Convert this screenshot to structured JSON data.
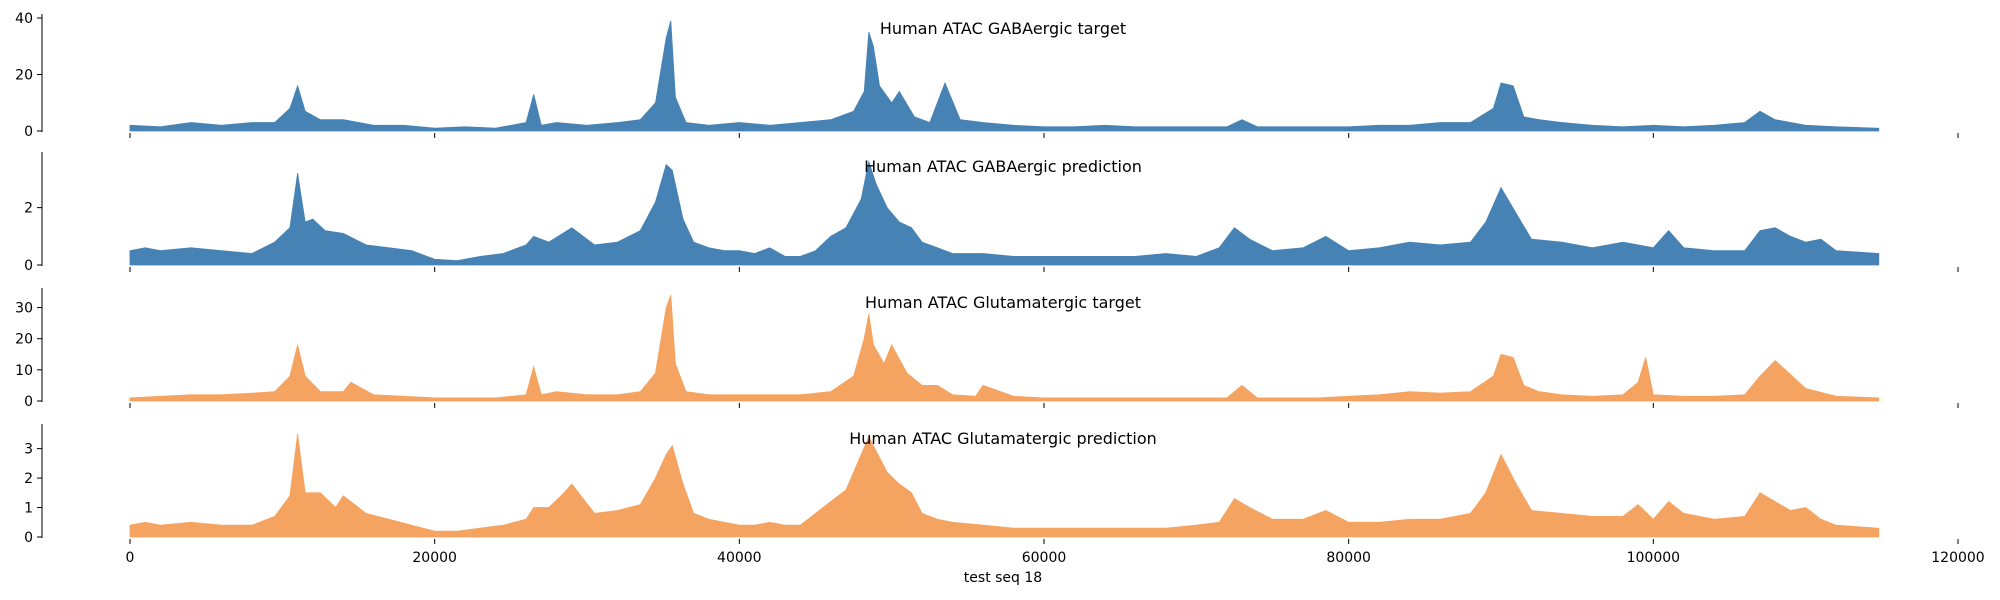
{
  "figure": {
    "xlabel": "test seq 18",
    "x_tick_labels": [
      "0",
      "20000",
      "40000",
      "60000",
      "80000",
      "100000",
      "120000"
    ]
  },
  "chart_data": [
    {
      "type": "area",
      "title": "Human ATAC GABAergic target",
      "color": "#4682b4",
      "xlim": [
        0,
        120000
      ],
      "ylim": [
        0,
        40
      ],
      "yticks": [
        0,
        20,
        40
      ],
      "x_ticks": [
        0,
        20000,
        40000,
        60000,
        80000,
        100000,
        120000
      ],
      "x": [
        0,
        2000,
        4000,
        6000,
        8000,
        9500,
        10500,
        11000,
        11500,
        12500,
        14000,
        16000,
        18000,
        20000,
        22000,
        24000,
        26000,
        26500,
        27000,
        28000,
        30000,
        32000,
        33500,
        34500,
        35200,
        35500,
        35800,
        36500,
        38000,
        40000,
        42000,
        44000,
        46000,
        47500,
        48200,
        48500,
        48800,
        49200,
        50000,
        50500,
        51500,
        52500,
        53500,
        54500,
        56000,
        58000,
        60000,
        62000,
        64000,
        66000,
        68000,
        70000,
        72000,
        73000,
        74000,
        76000,
        78000,
        80000,
        82000,
        84000,
        86000,
        88000,
        89500,
        90000,
        90800,
        91500,
        92500,
        94000,
        96000,
        98000,
        100000,
        102000,
        104000,
        106000,
        107000,
        108000,
        110000,
        112000,
        114800
      ],
      "values": [
        2,
        1.5,
        3,
        2,
        3,
        3,
        8,
        16,
        7,
        4,
        4,
        2,
        2,
        1,
        1.5,
        1,
        3,
        13,
        2,
        3,
        2,
        3,
        4,
        10,
        33,
        39,
        12,
        3,
        2,
        3,
        2,
        3,
        4,
        7,
        14,
        35,
        30,
        16,
        10,
        14,
        5,
        3,
        17,
        4,
        3,
        2,
        1.5,
        1.5,
        2,
        1.5,
        1.5,
        1.5,
        1.5,
        4,
        1.5,
        1.5,
        1.5,
        1.5,
        2,
        2,
        3,
        3,
        8,
        17,
        16,
        5,
        4,
        3,
        2,
        1.5,
        2,
        1.5,
        2,
        3,
        7,
        4,
        2,
        1.5,
        1
      ]
    },
    {
      "type": "area",
      "title": "Human ATAC GABAergic prediction",
      "color": "#4682b4",
      "xlim": [
        0,
        120000
      ],
      "ylim": [
        0,
        3.8
      ],
      "yticks": [
        0,
        2
      ],
      "x_ticks": [
        0,
        20000,
        40000,
        60000,
        80000,
        100000,
        120000
      ],
      "x": [
        0,
        1000,
        2000,
        4000,
        6000,
        8000,
        9500,
        10500,
        11000,
        11500,
        12000,
        12800,
        14000,
        15500,
        17000,
        18500,
        20000,
        21500,
        23000,
        24500,
        26000,
        26500,
        27500,
        29000,
        30500,
        32000,
        33500,
        34500,
        35200,
        35600,
        36300,
        37000,
        38000,
        39000,
        40000,
        41000,
        42000,
        43000,
        44000,
        45000,
        46000,
        47000,
        48000,
        48500,
        49000,
        49700,
        50500,
        51300,
        52000,
        53000,
        54000,
        56000,
        58000,
        60000,
        62000,
        64000,
        66000,
        68000,
        70000,
        71500,
        72500,
        73500,
        75000,
        77000,
        78500,
        80000,
        82000,
        84000,
        86000,
        88000,
        89000,
        90000,
        91000,
        92000,
        94000,
        96000,
        98000,
        100000,
        101000,
        102000,
        104000,
        106000,
        107000,
        108000,
        109000,
        110000,
        111000,
        112000,
        114800
      ],
      "values": [
        0.5,
        0.6,
        0.5,
        0.6,
        0.5,
        0.4,
        0.8,
        1.3,
        3.2,
        1.5,
        1.6,
        1.2,
        1.1,
        0.7,
        0.6,
        0.5,
        0.2,
        0.15,
        0.3,
        0.4,
        0.7,
        1,
        0.8,
        1.3,
        0.7,
        0.8,
        1.2,
        2.2,
        3.5,
        3.3,
        1.6,
        0.8,
        0.6,
        0.5,
        0.5,
        0.4,
        0.6,
        0.3,
        0.3,
        0.5,
        1,
        1.3,
        2.3,
        3.6,
        2.8,
        2,
        1.5,
        1.3,
        0.8,
        0.6,
        0.4,
        0.4,
        0.3,
        0.3,
        0.3,
        0.3,
        0.3,
        0.4,
        0.3,
        0.6,
        1.3,
        0.9,
        0.5,
        0.6,
        1,
        0.5,
        0.6,
        0.8,
        0.7,
        0.8,
        1.5,
        2.7,
        1.8,
        0.9,
        0.8,
        0.6,
        0.8,
        0.6,
        1.2,
        0.6,
        0.5,
        0.5,
        1.2,
        1.3,
        1,
        0.8,
        0.9,
        0.5,
        0.4
      ]
    },
    {
      "type": "area",
      "title": "Human ATAC Glutamatergic target",
      "color": "#f4a460",
      "xlim": [
        0,
        120000
      ],
      "ylim": [
        0,
        35
      ],
      "yticks": [
        0,
        10,
        20,
        30
      ],
      "x_ticks": [
        0,
        20000,
        40000,
        60000,
        80000,
        100000,
        120000
      ],
      "x": [
        0,
        2000,
        4000,
        6000,
        8000,
        9500,
        10500,
        11000,
        11500,
        12500,
        14000,
        14500,
        16000,
        18000,
        20000,
        22000,
        24000,
        26000,
        26500,
        27000,
        28000,
        30000,
        32000,
        33500,
        34500,
        35200,
        35500,
        35800,
        36500,
        38000,
        40000,
        42000,
        44000,
        46000,
        47500,
        48200,
        48500,
        48800,
        49500,
        50000,
        51000,
        52000,
        53000,
        54000,
        55500,
        56000,
        58000,
        60000,
        62000,
        64000,
        66000,
        68000,
        70000,
        72000,
        73000,
        74000,
        76000,
        78000,
        80000,
        82000,
        84000,
        86000,
        88000,
        89500,
        90000,
        90800,
        91500,
        92500,
        94000,
        96000,
        98000,
        99000,
        99500,
        100000,
        102000,
        104000,
        106000,
        107000,
        108000,
        110000,
        112000,
        114800
      ],
      "values": [
        1,
        1.5,
        2,
        2,
        2.5,
        3,
        8,
        18,
        8,
        3,
        3,
        6,
        2,
        1.5,
        1,
        1,
        1,
        2,
        11,
        2,
        3,
        2,
        2,
        3,
        9,
        30,
        34,
        12,
        3,
        2,
        2,
        2,
        2,
        3,
        8,
        20,
        28,
        18,
        12,
        18,
        9,
        5,
        5,
        2,
        1.5,
        5,
        1.5,
        1,
        1,
        1,
        1,
        1,
        1,
        1,
        5,
        1,
        1,
        1,
        1.5,
        2,
        3,
        2.5,
        3,
        8,
        15,
        14,
        5,
        3,
        2,
        1.5,
        2,
        6,
        14,
        2,
        1.5,
        1.5,
        2,
        8,
        13,
        4,
        1.5,
        1
      ]
    },
    {
      "type": "area",
      "title": "Human ATAC Glutamatergic prediction",
      "color": "#f4a460",
      "xlim": [
        0,
        120000
      ],
      "ylim": [
        0,
        3.7
      ],
      "yticks": [
        0,
        1,
        2,
        3
      ],
      "x_ticks": [
        0,
        20000,
        40000,
        60000,
        80000,
        100000,
        120000
      ],
      "x": [
        0,
        1000,
        2000,
        4000,
        6000,
        8000,
        9500,
        10500,
        11000,
        11500,
        12500,
        13500,
        14000,
        15500,
        17000,
        18500,
        20000,
        21500,
        23000,
        24500,
        26000,
        26500,
        27500,
        28500,
        29000,
        30500,
        32000,
        33500,
        34500,
        35200,
        35600,
        36300,
        37000,
        38000,
        39000,
        40000,
        41000,
        42000,
        43000,
        44000,
        45000,
        46000,
        47000,
        48000,
        48500,
        49000,
        49700,
        50500,
        51300,
        52000,
        53000,
        54000,
        56000,
        58000,
        60000,
        62000,
        64000,
        66000,
        68000,
        70000,
        71500,
        72500,
        73500,
        75000,
        77000,
        78500,
        80000,
        82000,
        84000,
        86000,
        88000,
        89000,
        90000,
        91000,
        92000,
        94000,
        96000,
        98000,
        99000,
        100000,
        101000,
        102000,
        104000,
        106000,
        107000,
        108000,
        109000,
        110000,
        111000,
        112000,
        114800
      ],
      "values": [
        0.4,
        0.5,
        0.4,
        0.5,
        0.4,
        0.4,
        0.7,
        1.4,
        3.5,
        1.5,
        1.5,
        1.0,
        1.4,
        0.8,
        0.6,
        0.4,
        0.2,
        0.2,
        0.3,
        0.4,
        0.6,
        1.0,
        1.0,
        1.5,
        1.8,
        0.8,
        0.9,
        1.1,
        2.0,
        2.8,
        3.1,
        1.8,
        0.8,
        0.6,
        0.5,
        0.4,
        0.4,
        0.5,
        0.4,
        0.4,
        0.8,
        1.2,
        1.6,
        2.8,
        3.4,
        2.9,
        2.2,
        1.8,
        1.5,
        0.8,
        0.6,
        0.5,
        0.4,
        0.3,
        0.3,
        0.3,
        0.3,
        0.3,
        0.3,
        0.4,
        0.5,
        1.3,
        1.0,
        0.6,
        0.6,
        0.9,
        0.5,
        0.5,
        0.6,
        0.6,
        0.8,
        1.5,
        2.8,
        1.8,
        0.9,
        0.8,
        0.7,
        0.7,
        1.1,
        0.6,
        1.2,
        0.8,
        0.6,
        0.7,
        1.5,
        1.2,
        0.9,
        1.0,
        0.6,
        0.4,
        0.3
      ]
    }
  ]
}
